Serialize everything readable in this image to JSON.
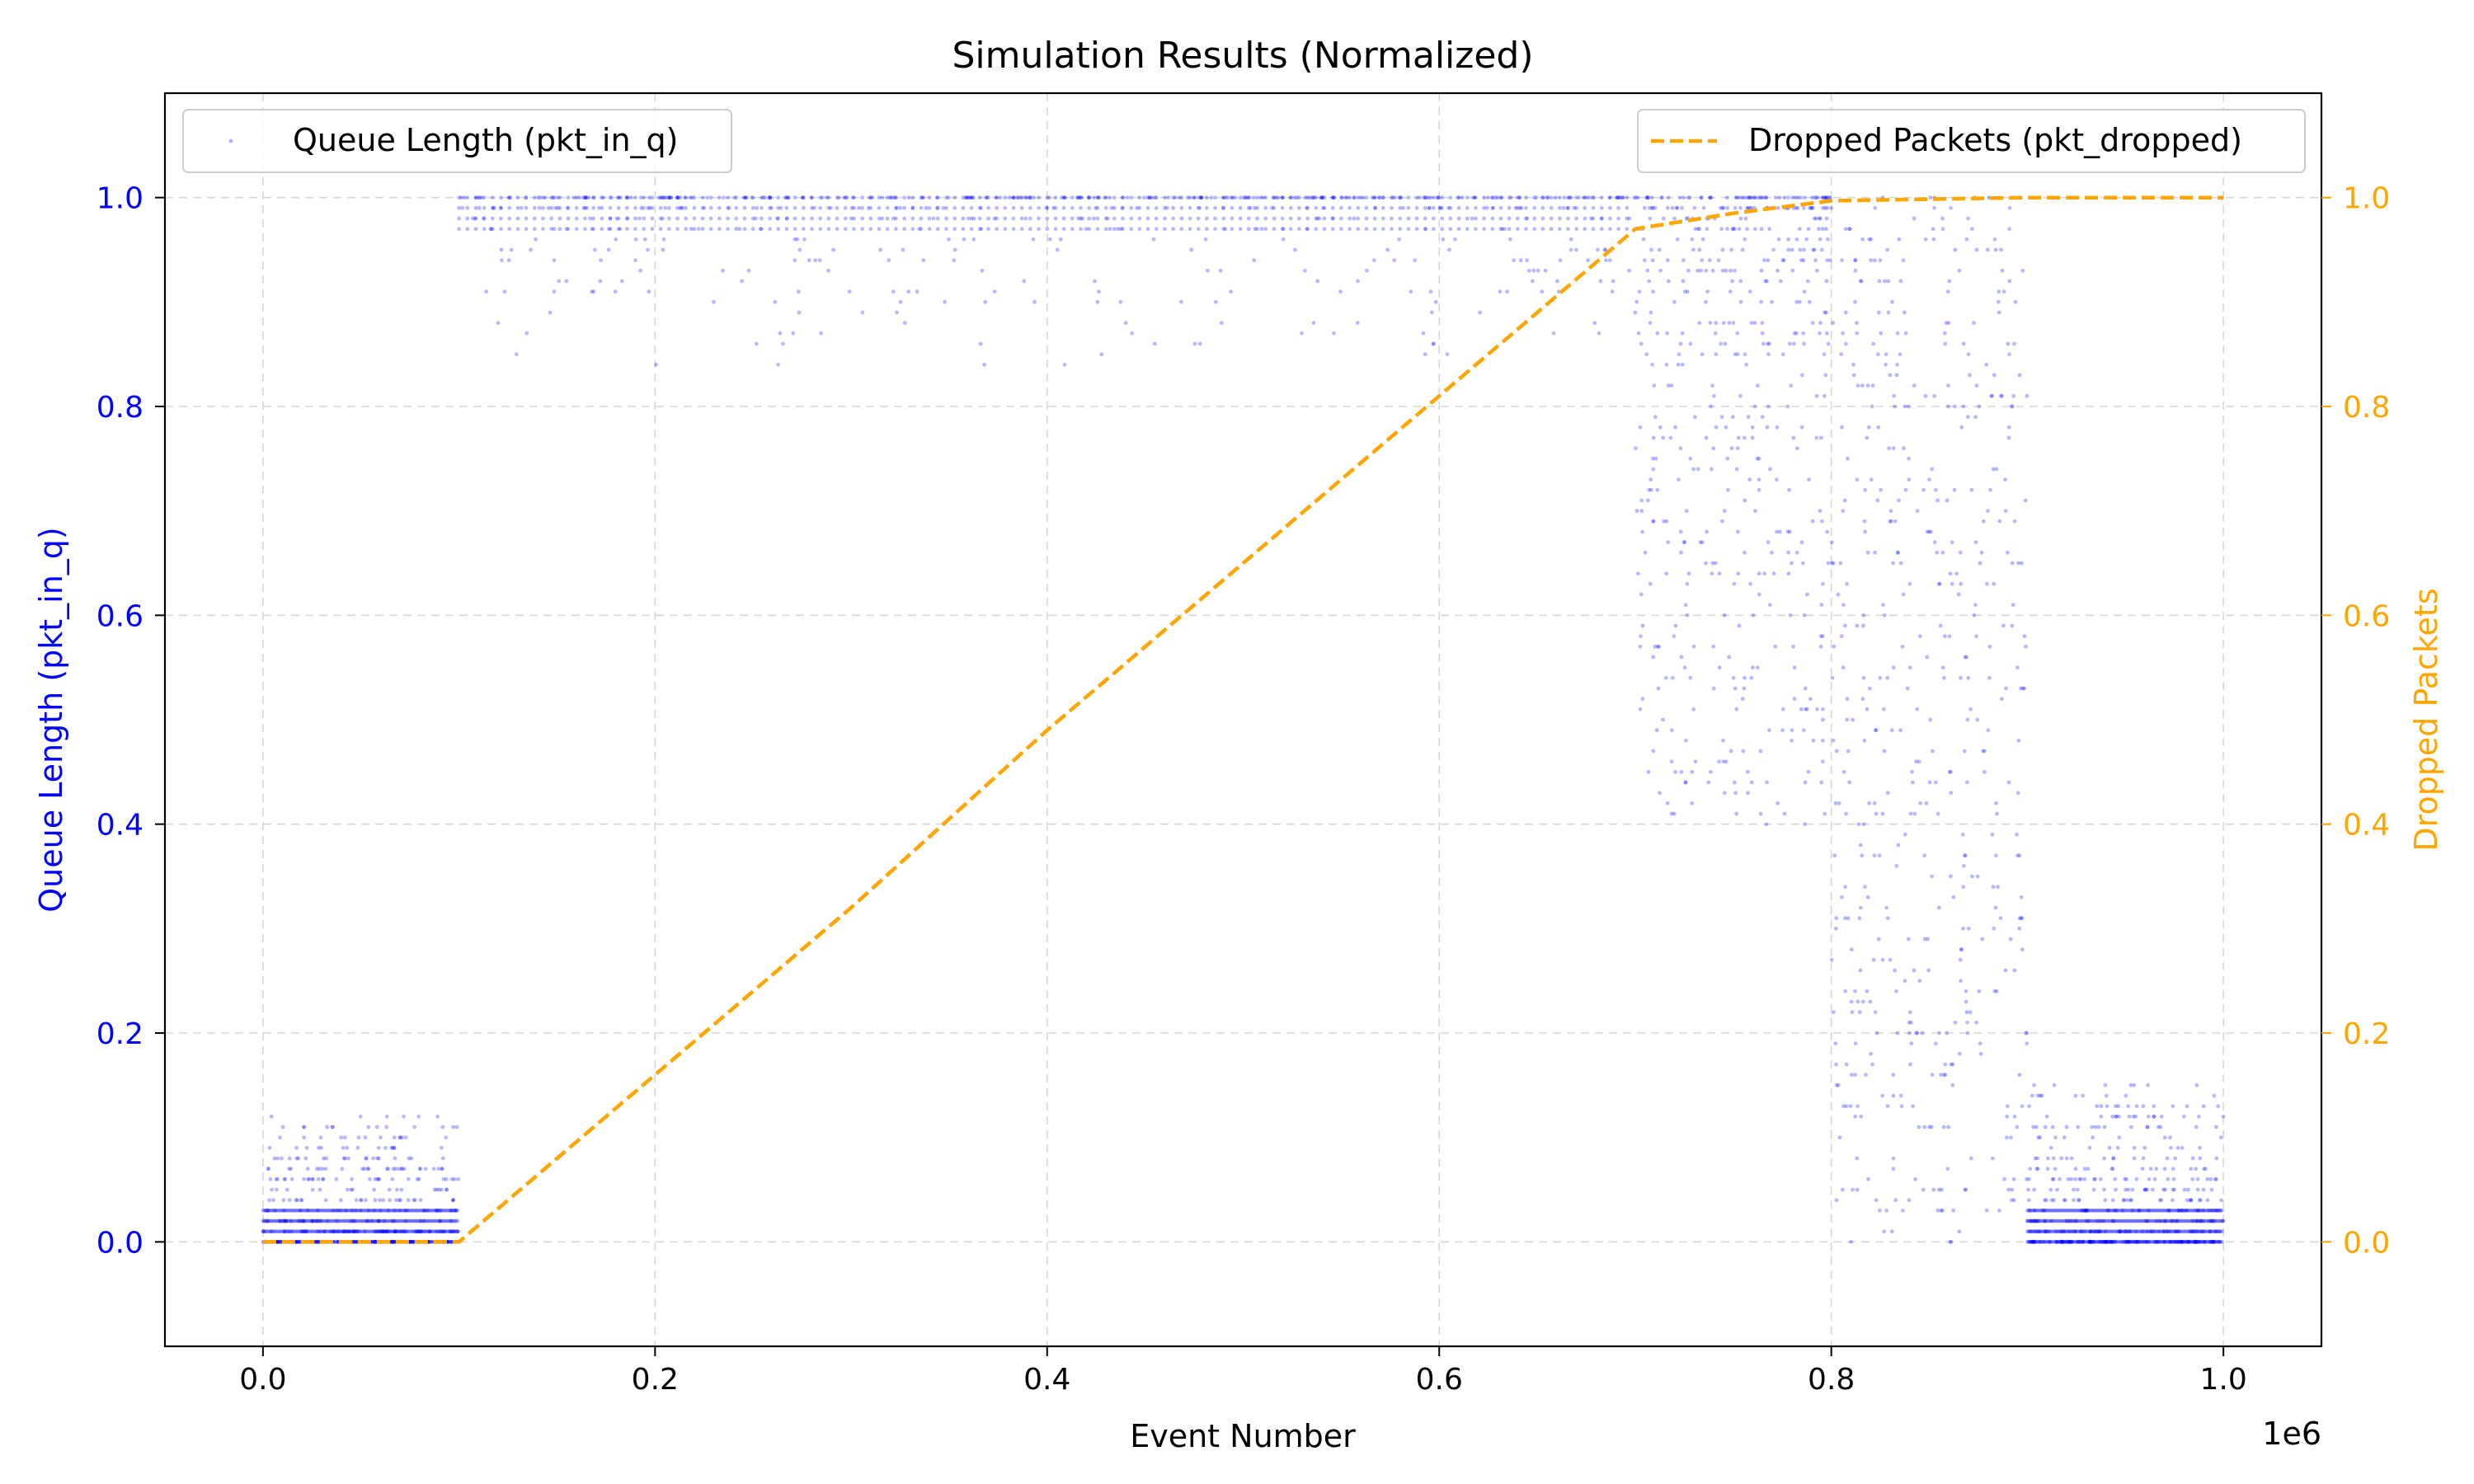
{
  "chart_data": {
    "type": "scatter",
    "title": "Simulation Results (Normalized)",
    "xlabel": "Event Number",
    "x_offset_label": "1e6",
    "ylabel_left": "Queue Length (pkt_in_q)",
    "ylabel_right": "Dropped Packets",
    "xlim": [
      -0.05,
      1.05
    ],
    "ylim": [
      -0.1,
      1.1
    ],
    "x_ticks": [
      "0.0",
      "0.2",
      "0.4",
      "0.6",
      "0.8",
      "1.0"
    ],
    "x_tick_values": [
      0.0,
      0.2,
      0.4,
      0.6,
      0.8,
      1.0
    ],
    "y_ticks_left": [
      "0.0",
      "0.2",
      "0.4",
      "0.6",
      "0.8",
      "1.0"
    ],
    "y_ticks_right": [
      "0.0",
      "0.2",
      "0.4",
      "0.6",
      "0.8",
      "1.0"
    ],
    "y_tick_values": [
      0.0,
      0.2,
      0.4,
      0.6,
      0.8,
      1.0
    ],
    "grid": true,
    "legend_left": {
      "placement": "upper-left",
      "label": "Queue Length (pkt_in_q)"
    },
    "legend_right": {
      "placement": "upper-right",
      "label": "Dropped Packets (pkt_dropped)"
    },
    "colors": {
      "queue": "#0000ff",
      "dropped": "#ffa500",
      "left_axis": "#0000ff",
      "right_axis": "#ffa500"
    },
    "series": [
      {
        "name": "Queue Length (pkt_in_q)",
        "type": "scatter",
        "segments": [
          {
            "x_range": [
              0.0,
              0.1
            ],
            "level": "low",
            "y_min": 0.0,
            "y_max": 0.12,
            "y_mode": 0.01
          },
          {
            "x_range": [
              0.1,
              0.7
            ],
            "level": "high",
            "y_min": 0.84,
            "y_max": 1.0,
            "y_mode": 1.0
          },
          {
            "x_range": [
              0.7,
              0.8
            ],
            "level": "high-spread",
            "y_min": 0.4,
            "y_max": 1.0,
            "y_mode": 0.95
          },
          {
            "x_range": [
              0.8,
              0.9
            ],
            "level": "oscillating",
            "y_min": 0.0,
            "y_max": 1.0,
            "y_mode": 0.5
          },
          {
            "x_range": [
              0.9,
              1.0
            ],
            "level": "low",
            "y_min": 0.0,
            "y_max": 0.15,
            "y_mode": 0.01
          }
        ]
      },
      {
        "name": "Dropped Packets (pkt_dropped)",
        "type": "line",
        "style": "dashed",
        "x": [
          0.0,
          0.1,
          0.2,
          0.3,
          0.4,
          0.5,
          0.6,
          0.7,
          0.75,
          0.8,
          0.9,
          1.0
        ],
        "y": [
          0.0,
          0.0,
          0.16,
          0.32,
          0.49,
          0.65,
          0.81,
          0.97,
          0.985,
          0.997,
          1.0,
          1.0
        ]
      }
    ]
  }
}
